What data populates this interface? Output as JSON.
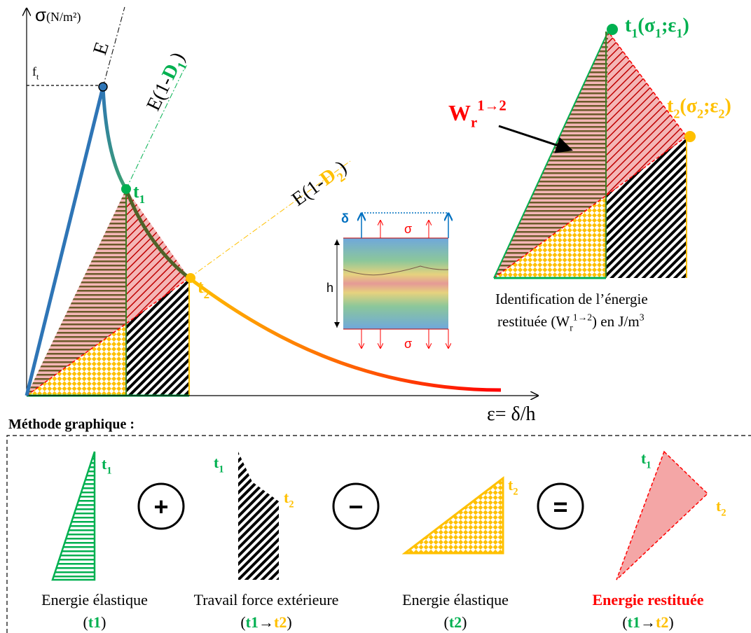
{
  "main_diagram": {
    "y_axis_label": {
      "symbol": "σ",
      "unit": "(N/m²)"
    },
    "x_axis_label": "ε= δ/h",
    "ft_label": [
      "f",
      "t"
    ],
    "slope_labels": [
      [
        "E"
      ],
      [
        "E(1-",
        "D",
        "1",
        ")"
      ],
      [
        "E(1-",
        "D",
        "2",
        ")"
      ]
    ],
    "point_labels": [
      [
        "t",
        "1"
      ],
      [
        "t",
        "2"
      ]
    ],
    "specimen": {
      "delta": "δ",
      "sigma_top": "σ",
      "sigma_bottom": "σ",
      "height": "h"
    }
  },
  "zoom": {
    "t1_label": [
      "t",
      "1",
      "(σ",
      "1",
      ";ε",
      "1",
      ")"
    ],
    "t2_label": [
      "t",
      "2",
      "(σ",
      "2",
      ";ε",
      "2",
      ")"
    ],
    "w_label": [
      "W",
      "r",
      "1→2"
    ],
    "caption": {
      "line1": "Identification de l’énergie",
      "line2": [
        "restituée (W",
        "r",
        "1→2",
        ") en J/m",
        "3"
      ]
    }
  },
  "method": {
    "title": "Méthode graphique :",
    "operators": [
      "+",
      "−",
      "="
    ],
    "terms": [
      {
        "point_labels": [
          [
            "t",
            "1"
          ]
        ],
        "name": "Energie élastique",
        "detail": [
          "(",
          "t1",
          ")"
        ]
      },
      {
        "point_labels": [
          [
            "t",
            "1"
          ],
          [
            "t",
            "2"
          ]
        ],
        "name": "Travail force extérieure",
        "detail": [
          "(",
          "t1",
          "→",
          "t2",
          ")"
        ]
      },
      {
        "point_labels": [
          [
            "t",
            "2"
          ]
        ],
        "name": "Energie élastique",
        "detail": [
          "(",
          "t2",
          ")"
        ]
      },
      {
        "point_labels": [
          [
            "t",
            "1"
          ],
          [
            "t",
            "2"
          ]
        ],
        "name": "Energie restituée",
        "detail": [
          "(",
          "t1",
          "→",
          "t2",
          ")"
        ]
      }
    ]
  }
}
